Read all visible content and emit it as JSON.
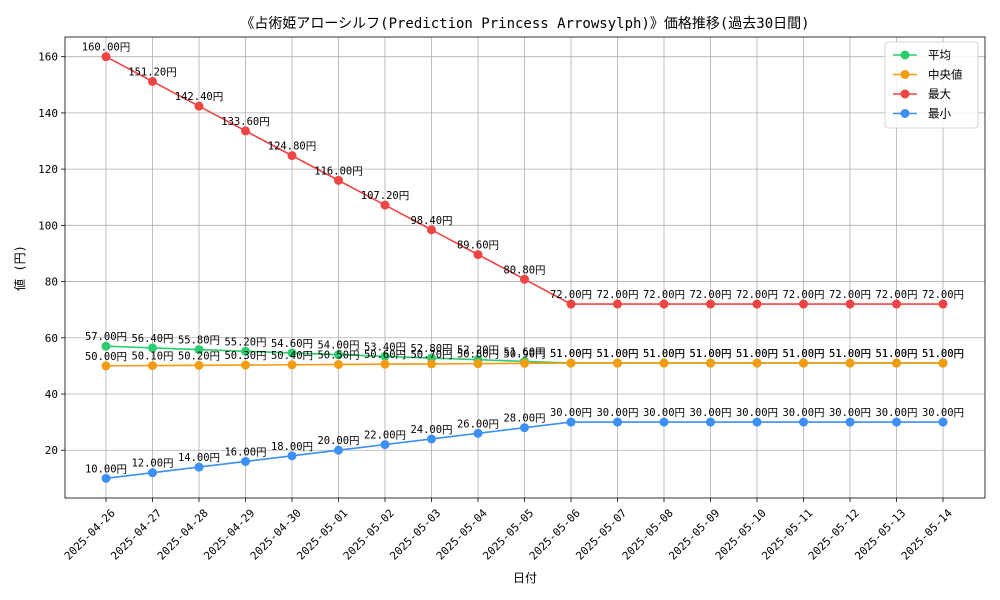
{
  "chart_data": {
    "type": "line",
    "title": "《占術姫アローシルフ(Prediction Princess Arrowsylph)》価格推移(過去30日間)",
    "xlabel": "日付",
    "ylabel": "値 (円)",
    "categories": [
      "2025-04-26",
      "2025-04-27",
      "2025-04-28",
      "2025-04-29",
      "2025-04-30",
      "2025-05-01",
      "2025-05-02",
      "2025-05-03",
      "2025-05-04",
      "2025-05-05",
      "2025-05-06",
      "2025-05-07",
      "2025-05-08",
      "2025-05-09",
      "2025-05-10",
      "2025-05-11",
      "2025-05-12",
      "2025-05-13",
      "2025-05-14"
    ],
    "ylim": [
      3,
      167
    ],
    "yticks": [
      20,
      40,
      60,
      80,
      100,
      120,
      140,
      160
    ],
    "grid": true,
    "legend_position": "top-right",
    "label_suffix": "円",
    "series": [
      {
        "name": "平均",
        "color": "#2ecc71",
        "values": [
          57.0,
          56.4,
          55.8,
          55.2,
          54.6,
          54.0,
          53.4,
          52.8,
          52.2,
          51.6,
          51.0,
          51.0,
          51.0,
          51.0,
          51.0,
          51.0,
          51.0,
          51.0,
          51.0
        ]
      },
      {
        "name": "中央値",
        "color": "#f39c12",
        "values": [
          50.0,
          50.1,
          50.2,
          50.3,
          50.4,
          50.5,
          50.6,
          50.7,
          50.8,
          50.9,
          51.0,
          51.0,
          51.0,
          51.0,
          51.0,
          51.0,
          51.0,
          51.0,
          51.0
        ]
      },
      {
        "name": "最大",
        "color": "#ef4444",
        "values": [
          160.0,
          151.2,
          142.4,
          133.6,
          124.8,
          116.0,
          107.2,
          98.4,
          89.6,
          80.8,
          72.0,
          72.0,
          72.0,
          72.0,
          72.0,
          72.0,
          72.0,
          72.0,
          72.0
        ]
      },
      {
        "name": "最小",
        "color": "#3b8ff5",
        "values": [
          10.0,
          12.0,
          14.0,
          16.0,
          18.0,
          20.0,
          22.0,
          24.0,
          26.0,
          28.0,
          30.0,
          30.0,
          30.0,
          30.0,
          30.0,
          30.0,
          30.0,
          30.0,
          30.0
        ]
      }
    ]
  }
}
